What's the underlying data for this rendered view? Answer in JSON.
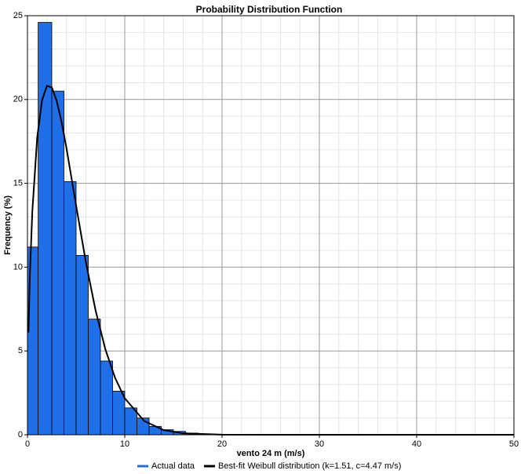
{
  "chart_data": {
    "type": "histogram",
    "title": "Probability Distribution Function",
    "x_label": "vento 24 m (m/s)",
    "y_label": "Frequency (%)",
    "bins": [
      0,
      1.1,
      2.5,
      3.75,
      5,
      6.25,
      7.5,
      8.75,
      10,
      11.25,
      12.5,
      13.75,
      15,
      16.25,
      17.5,
      18.75,
      20
    ],
    "series": [
      {
        "name": "Actual data",
        "color": "#1f6fe8",
        "type": "histogram",
        "values": [
          11.2,
          24.6,
          20.5,
          15.1,
          10.7,
          6.9,
          4.4,
          2.6,
          1.6,
          1.0,
          0.5,
          0.3,
          0.2,
          0.1,
          0.05,
          0.03
        ]
      },
      {
        "name": "Best-fit Weibull distribution (k=1.51, c=4.47 m/s)",
        "color": "#000000",
        "type": "line",
        "x": [
          0.1,
          0.25,
          0.5,
          1,
          1.5,
          2,
          2.5,
          3,
          3.5,
          4,
          5,
          6,
          7,
          8,
          9,
          10,
          12,
          14,
          16,
          20,
          30,
          50
        ],
        "values": [
          6.1,
          9.57,
          13.33,
          17.73,
          19.96,
          20.82,
          20.72,
          19.93,
          18.68,
          17.13,
          13.68,
          10.31,
          7.42,
          5.11,
          3.4,
          2.18,
          0.82,
          0.28,
          0.085,
          0.006,
          0,
          0
        ]
      }
    ],
    "xlim": [
      0,
      50
    ],
    "xticks": [
      0,
      10,
      20,
      30,
      40,
      50
    ],
    "ylim": [
      0,
      25
    ],
    "yticks": [
      0,
      5,
      10,
      15,
      20,
      25
    ],
    "grid": true,
    "minor_grid": true,
    "legend": "bottom"
  }
}
